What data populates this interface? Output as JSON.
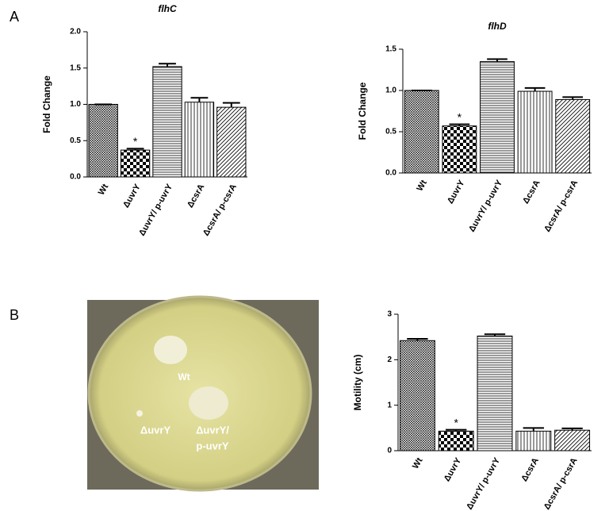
{
  "panel_labels": [
    "A",
    "B"
  ],
  "photo": {
    "labels": [
      "Wt",
      "ΔuvrY",
      "ΔuvrY/",
      "p-uvrY"
    ]
  },
  "chart_data": [
    {
      "type": "bar",
      "title": "flhC",
      "y_label": "Fold Change",
      "categories": [
        "Wt",
        "ΔuvrY",
        "ΔuvrY/ p-uvrY",
        "ΔcsrA",
        "ΔcsrA/ p-csrA"
      ],
      "values": [
        1.0,
        0.37,
        1.52,
        1.03,
        0.96
      ],
      "errors": [
        0,
        0.02,
        0.04,
        0.06,
        0.06
      ],
      "significance": [
        null,
        "*",
        null,
        null,
        null
      ],
      "color": "#000000",
      "ylim": [
        0,
        2
      ],
      "yticks": [
        {
          "value": 0,
          "label": "0.0"
        },
        0.5,
        {
          "value": 1,
          "label": "1.0"
        },
        1.5,
        {
          "value": 2,
          "label": "2.0"
        }
      ]
    },
    {
      "type": "bar",
      "title": "flhD",
      "y_label": "Fold Change",
      "categories": [
        "Wt",
        "ΔuvrY",
        "ΔuvrY/ p-uvrY",
        "ΔcsrA",
        "ΔcsrA/ p-csrA"
      ],
      "values": [
        1.0,
        0.57,
        1.35,
        0.99,
        0.89
      ],
      "errors": [
        0,
        0.02,
        0.03,
        0.04,
        0.03
      ],
      "significance": [
        null,
        "*",
        null,
        null,
        null
      ],
      "color": "#000000",
      "ylim": [
        0,
        1.5
      ],
      "yticks": [
        {
          "value": 0,
          "label": "0.0"
        },
        0.5,
        {
          "value": 1,
          "label": "1.0"
        },
        1.5
      ]
    },
    {
      "type": "bar",
      "y_label": "Motility (cm)",
      "categories": [
        "Wt",
        "ΔuvrY",
        "ΔuvrY/ p-uvrY",
        "ΔcsrA",
        "ΔcsrA/ p-csrA"
      ],
      "values": [
        2.42,
        0.43,
        2.52,
        0.43,
        0.45
      ],
      "errors": [
        0.04,
        0.03,
        0.04,
        0.07,
        0.04
      ],
      "significance": [
        null,
        "*",
        null,
        null,
        null
      ],
      "color": "#000000",
      "ylim": [
        0,
        3
      ],
      "yticks": [
        0,
        1,
        2,
        3
      ]
    }
  ]
}
